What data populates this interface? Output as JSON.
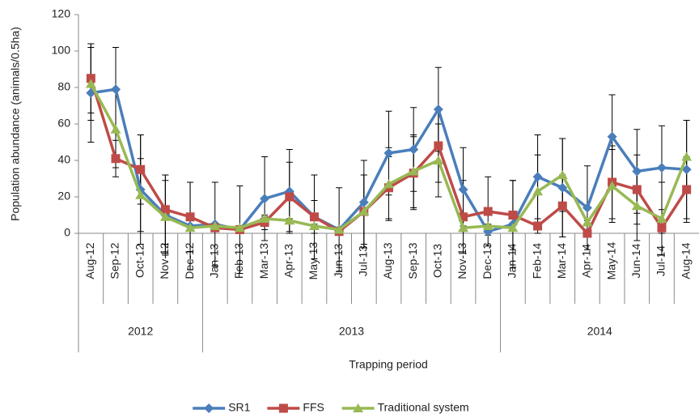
{
  "chart_data": {
    "type": "line",
    "y_axis_label": "Population abundance (animals/0.5ha)",
    "x_axis_label": "Trapping period",
    "categories": [
      "Aug-12",
      "Sep-12",
      "Oct-12",
      "Nov-12",
      "Dec-12",
      "Jan-13",
      "Feb-13",
      "Mar-13",
      "Apr-13",
      "May-13",
      "Jun-13",
      "Jul-13",
      "Aug-13",
      "Sep-13",
      "Oct-13",
      "Nov-13",
      "Dec-13",
      "Jan-14",
      "Feb-14",
      "Mar-14",
      "Apr-14",
      "May-14",
      "Jun-14",
      "Jul-14",
      "Aug-14"
    ],
    "groups": [
      {
        "label": "2012",
        "count": 5
      },
      {
        "label": "2013",
        "count": 12
      },
      {
        "label": "2014",
        "count": 8
      }
    ],
    "ylim": [
      0,
      120
    ],
    "yticks": [
      0,
      20,
      40,
      60,
      80,
      100,
      120
    ],
    "grid": false,
    "legend_position": "bottom",
    "series": [
      {
        "name": "SR1",
        "color": "#4a7ebb",
        "marker": "diamond",
        "values": [
          77,
          79,
          24,
          10,
          4,
          5,
          2,
          19,
          23,
          9,
          2,
          17,
          44,
          46,
          68,
          24,
          1,
          5,
          31,
          25,
          14,
          53,
          34,
          36,
          35
        ],
        "errors": [
          27,
          23,
          30,
          22,
          24,
          23,
          24,
          23,
          23,
          23,
          23,
          23,
          23,
          23,
          23,
          23,
          2,
          24,
          23,
          27,
          23,
          23,
          23,
          23,
          27
        ]
      },
      {
        "name": "FFS",
        "color": "#be4b48",
        "marker": "square",
        "values": [
          85,
          41,
          35,
          13,
          9,
          3,
          2,
          6,
          20,
          9,
          1,
          12,
          25,
          33,
          48,
          9,
          12,
          10,
          4,
          15,
          0,
          28,
          24,
          3,
          24
        ],
        "errors": [
          19,
          10,
          19,
          19,
          19,
          1,
          1,
          4,
          19,
          9,
          1,
          20,
          17,
          20,
          20,
          20,
          19,
          19,
          4,
          17,
          1,
          20,
          19,
          3,
          18
        ]
      },
      {
        "name": "Traditional system",
        "color": "#98b954",
        "marker": "triangle",
        "values": [
          82,
          57,
          21,
          9,
          3,
          4,
          3,
          8,
          7,
          4,
          2,
          12,
          27,
          34,
          40,
          3,
          4,
          3,
          23,
          32,
          6,
          26,
          15,
          8,
          42
        ],
        "errors": [
          20,
          21,
          20,
          20,
          1,
          1,
          1,
          1,
          1,
          1,
          1,
          20,
          20,
          20,
          20,
          1,
          1,
          1,
          20,
          20,
          1,
          20,
          19,
          20,
          20
        ]
      }
    ]
  }
}
